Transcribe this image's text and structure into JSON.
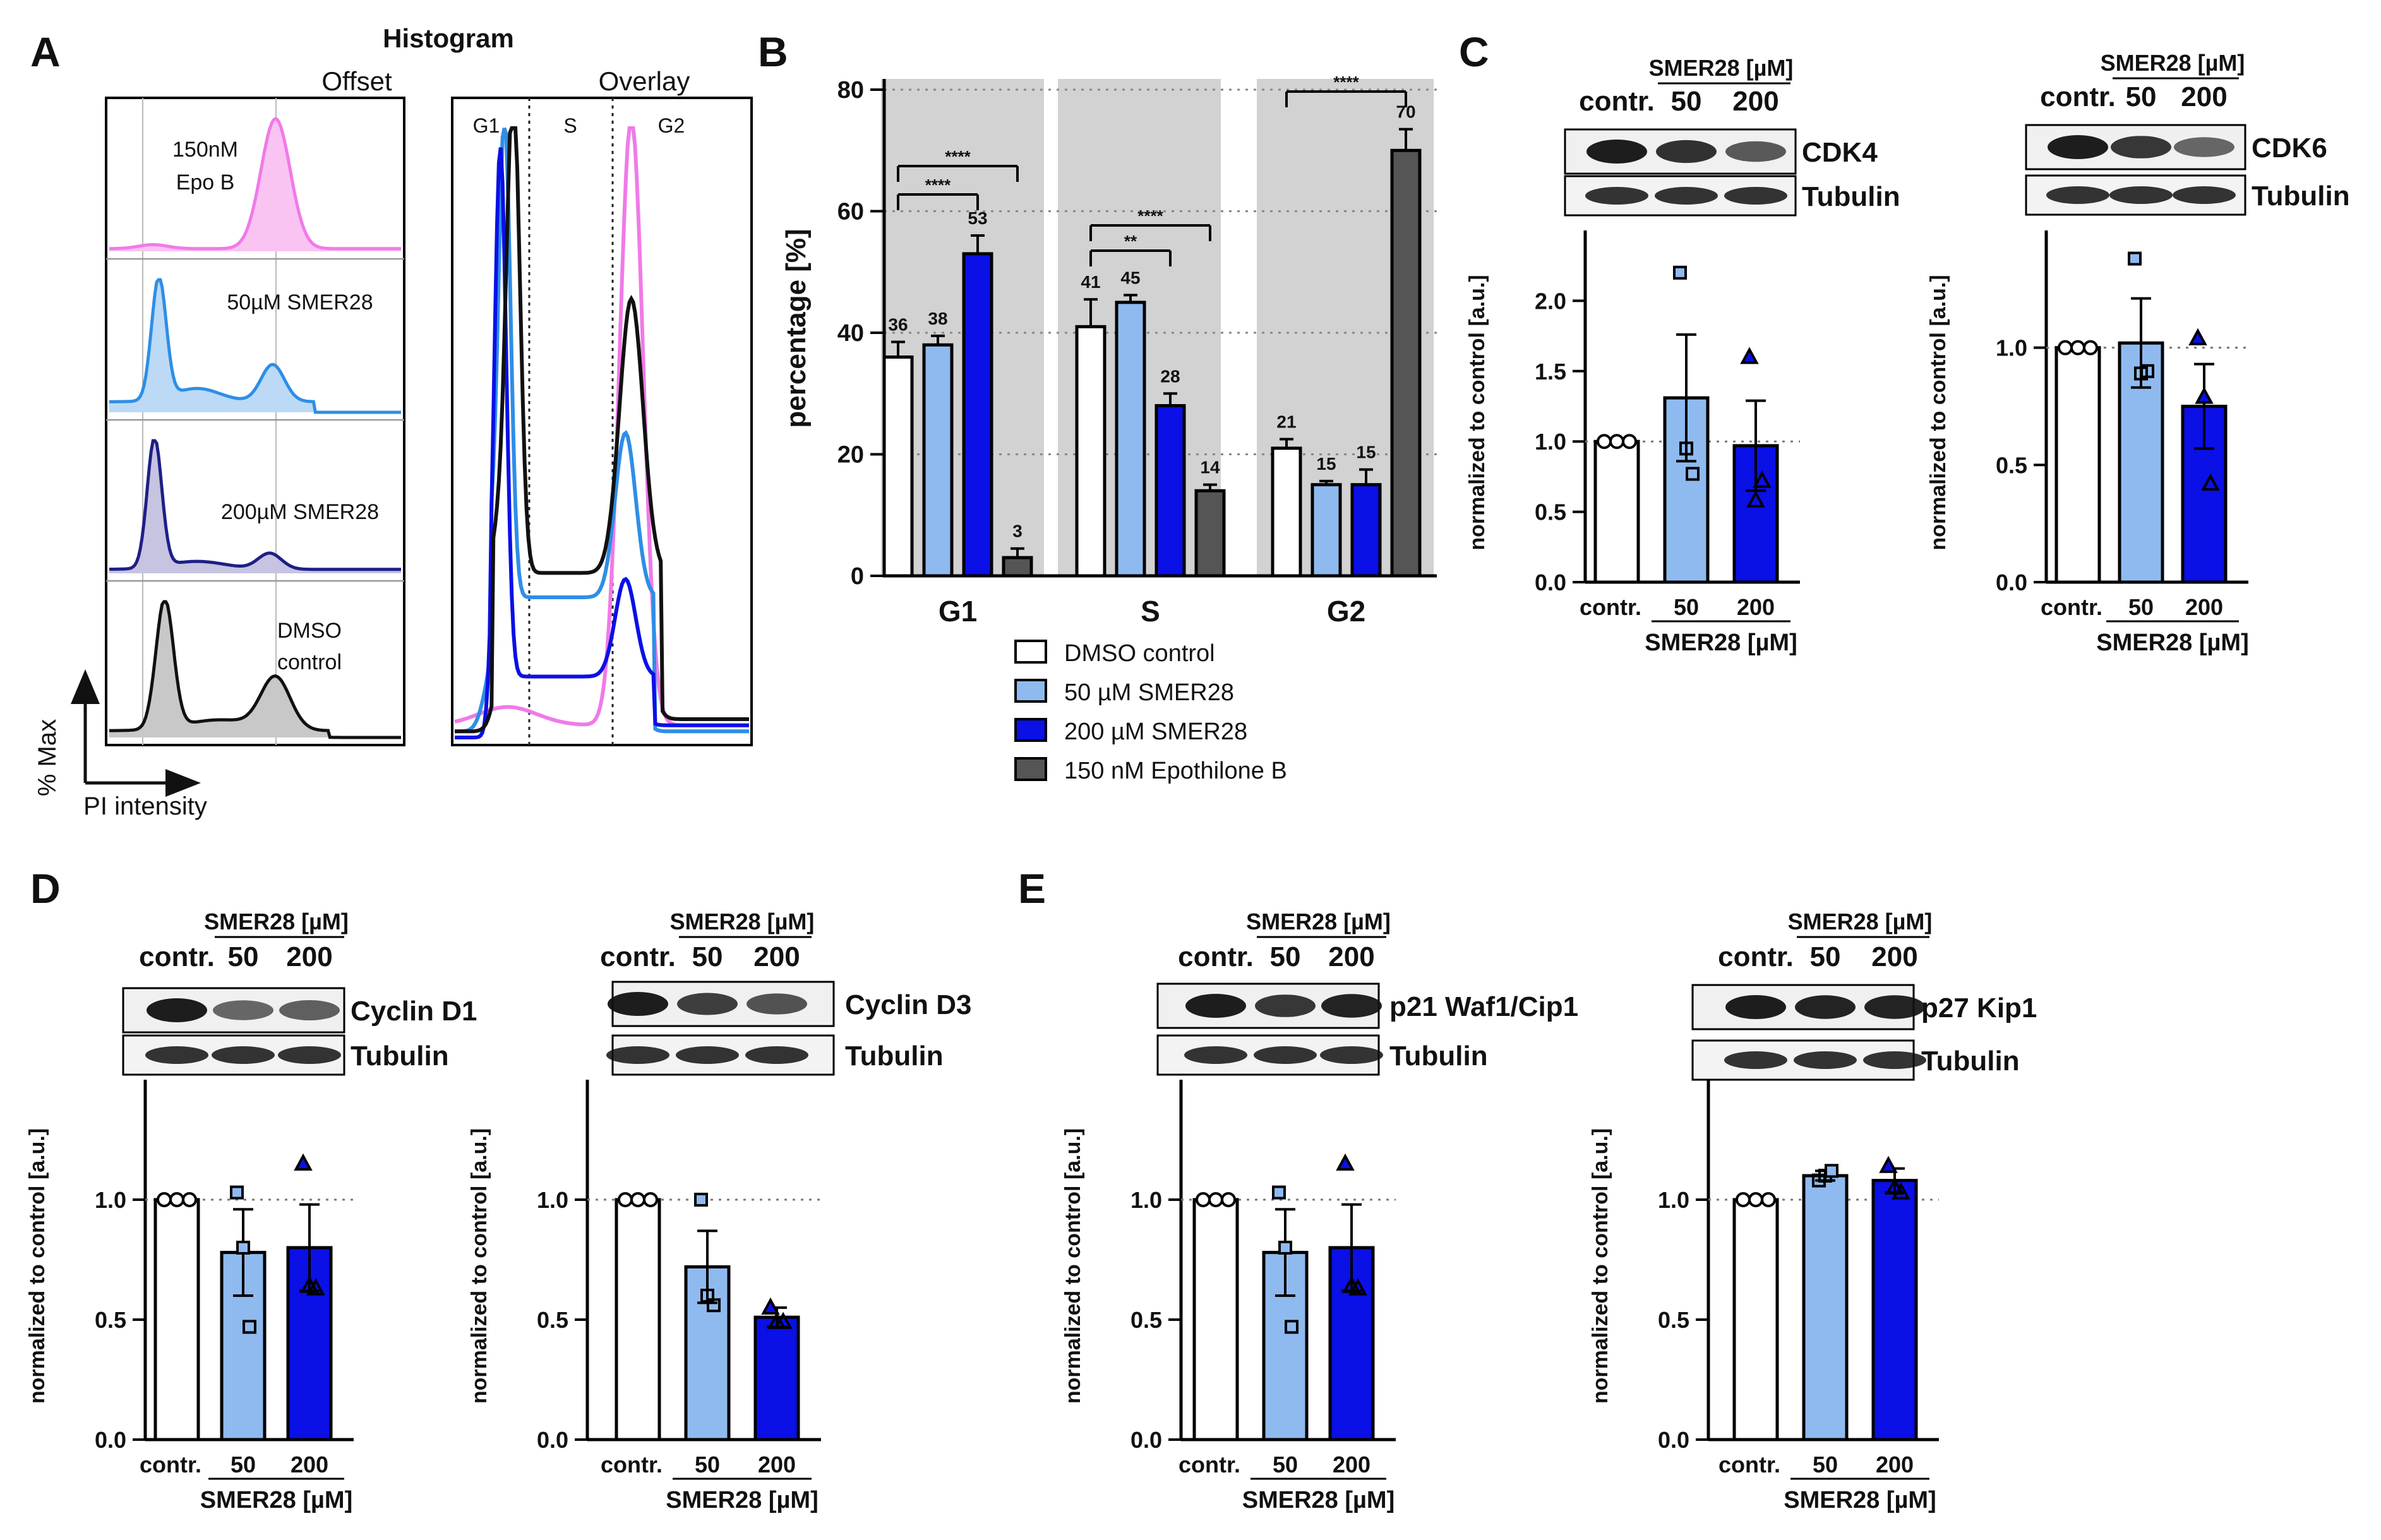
{
  "colors": {
    "dmso": "#ffffff",
    "smer50": "#8fbaf0",
    "smer200": "#0a10e6",
    "epo": "#555555",
    "pink": "#f07ae8",
    "mid_blue": "#2e8ee6",
    "navy": "#1e1f86",
    "grey_fill": "#c8c8c8"
  },
  "panel_letters": {
    "a": "A",
    "b": "B",
    "c": "C",
    "d": "D",
    "e": "E"
  },
  "panel_a": {
    "title": "Histogram",
    "offset_label": "Offset",
    "overlay_label": "Overlay",
    "row_labels": [
      {
        "line1": "150nM",
        "line2": "Epo B"
      },
      {
        "line1": "50µM SMER28",
        "line2": ""
      },
      {
        "line1": "200µM SMER28",
        "line2": ""
      },
      {
        "line1": "DMSO",
        "line2": "control"
      }
    ],
    "phase_labels": [
      "G1",
      "S",
      "G2"
    ],
    "y_axis": "% Max",
    "x_axis": "PI intensity"
  },
  "legend": {
    "items": [
      {
        "label": "DMSO control",
        "key": "dmso"
      },
      {
        "label": "50 µM SMER28",
        "key": "smer50"
      },
      {
        "label": "200 µM SMER28",
        "key": "smer200"
      },
      {
        "label": "150 nM Epothilone B",
        "key": "epo"
      }
    ]
  },
  "blot_common": {
    "contr": "contr.",
    "c50": "50",
    "c200": "200",
    "smer_header": "SMER28 [µM]",
    "tubulin": "Tubulin",
    "ylabel": "normalized to control [a.u.]"
  },
  "chart_data": [
    {
      "id": "B",
      "type": "bar",
      "title": "",
      "categories": [
        "G1",
        "S",
        "G2"
      ],
      "ylabel": "percentage [%]",
      "ylim": [
        0,
        80
      ],
      "yticks": [
        0,
        20,
        40,
        60,
        80
      ],
      "series": [
        {
          "name": "DMSO control",
          "values": [
            36,
            41,
            21
          ],
          "errors": [
            2.5,
            4.5,
            1.5
          ]
        },
        {
          "name": "50 µM SMER28",
          "values": [
            38,
            45,
            15
          ],
          "errors": [
            1.5,
            1.2,
            0.6
          ]
        },
        {
          "name": "200 µM SMER28",
          "values": [
            53,
            28,
            15
          ],
          "errors": [
            3,
            2,
            2.5
          ]
        },
        {
          "name": "150 nM Epothilone B",
          "values": [
            3,
            14,
            70
          ],
          "errors": [
            1.5,
            1,
            3.5
          ]
        }
      ],
      "value_labels": [
        [
          "36",
          "38",
          "53",
          "3"
        ],
        [
          "41",
          "45",
          "28",
          "14"
        ],
        [
          "21",
          "15",
          "15",
          "70"
        ]
      ],
      "significance": [
        {
          "label": "****",
          "group": 0,
          "from": 0,
          "to": 3
        },
        {
          "label": "****",
          "group": 0,
          "from": 0,
          "to": 2
        },
        {
          "label": "****",
          "group": 1,
          "from": 0,
          "to": 3
        },
        {
          "label": "**",
          "group": 1,
          "from": 0,
          "to": 2
        },
        {
          "label": "****",
          "group": 2,
          "from": 0,
          "to": 3
        }
      ]
    },
    {
      "id": "CDK4",
      "type": "bar",
      "protein": "CDK4",
      "categories": [
        "contr.",
        "50",
        "200"
      ],
      "xlabel": "SMER28 [µM]",
      "ylabel": "normalized to control [a.u.]",
      "ylim": [
        0,
        2.5
      ],
      "yticks": [
        "0.0",
        "0.5",
        "1.0",
        "1.5",
        "2.0"
      ],
      "values": [
        1.0,
        1.31,
        0.97
      ],
      "errors": [
        0,
        0.45,
        0.32
      ],
      "points": [
        [
          1,
          1,
          1
        ],
        [
          2.2,
          0.95,
          0.77
        ],
        [
          1.6,
          0.58,
          0.72
        ]
      ]
    },
    {
      "id": "CDK6",
      "type": "bar",
      "protein": "CDK6",
      "categories": [
        "contr.",
        "50",
        "200"
      ],
      "xlabel": "SMER28 [µM]",
      "ylabel": "normalized to control [a.u.]",
      "ylim": [
        0,
        1.5
      ],
      "yticks": [
        "0.0",
        "0.5",
        "1.0"
      ],
      "values": [
        1.0,
        1.02,
        0.75
      ],
      "errors": [
        0,
        0.19,
        0.18
      ],
      "points": [
        [
          1,
          1,
          1
        ],
        [
          1.38,
          0.89,
          0.9
        ],
        [
          1.04,
          0.79,
          0.42
        ]
      ]
    },
    {
      "id": "CyclinD1",
      "type": "bar",
      "protein": "Cyclin D1",
      "categories": [
        "contr.",
        "50",
        "200"
      ],
      "xlabel": "SMER28 [µM]",
      "ylabel": "normalized to control [a.u.]",
      "ylim": [
        0,
        1.5
      ],
      "yticks": [
        "0.0",
        "0.5",
        "1.0"
      ],
      "values": [
        1.0,
        0.78,
        0.8
      ],
      "errors": [
        0,
        0.18,
        0.18
      ],
      "points": [
        [
          1,
          1,
          1
        ],
        [
          1.03,
          0.8,
          0.47
        ],
        [
          1.15,
          0.64,
          0.63
        ]
      ]
    },
    {
      "id": "CyclinD3",
      "type": "bar",
      "protein": "Cyclin D3",
      "categories": [
        "contr.",
        "50",
        "200"
      ],
      "xlabel": "SMER28 [µM]",
      "ylabel": "normalized to control [a.u.]",
      "ylim": [
        0,
        1.5
      ],
      "yticks": [
        "0.0",
        "0.5",
        "1.0"
      ],
      "values": [
        1.0,
        0.72,
        0.51
      ],
      "errors": [
        0,
        0.15,
        0.04
      ],
      "points": [
        [
          1,
          1,
          1
        ],
        [
          1.0,
          0.6,
          0.56
        ],
        [
          0.55,
          0.49,
          0.49
        ]
      ]
    },
    {
      "id": "p21",
      "type": "bar",
      "protein": "p21 Waf1/Cip1",
      "categories": [
        "contr.",
        "50",
        "200"
      ],
      "xlabel": "SMER28 [µM]",
      "ylabel": "normalized to control [a.u.]",
      "ylim": [
        0,
        1.5
      ],
      "yticks": [
        "0.0",
        "0.5",
        "1.0"
      ],
      "values": [
        1.0,
        0.78,
        0.8
      ],
      "errors": [
        0,
        0.18,
        0.18
      ],
      "points": [
        [
          1,
          1,
          1
        ],
        [
          1.03,
          0.8,
          0.47
        ],
        [
          1.15,
          0.64,
          0.63
        ]
      ]
    },
    {
      "id": "p27",
      "type": "bar",
      "protein": "p27 Kip1",
      "categories": [
        "contr.",
        "50",
        "200"
      ],
      "xlabel": "SMER28 [µM]",
      "ylabel": "normalized to control [a.u.]",
      "ylim": [
        0,
        1.5
      ],
      "yticks": [
        "0.0",
        "0.5",
        "1.0"
      ],
      "values": [
        1.0,
        1.1,
        1.08
      ],
      "errors": [
        0,
        0.02,
        0.05
      ],
      "points": [
        [
          1,
          1,
          1
        ],
        [
          1.08,
          1.1,
          1.12
        ],
        [
          1.14,
          1.05,
          1.03
        ]
      ]
    }
  ]
}
